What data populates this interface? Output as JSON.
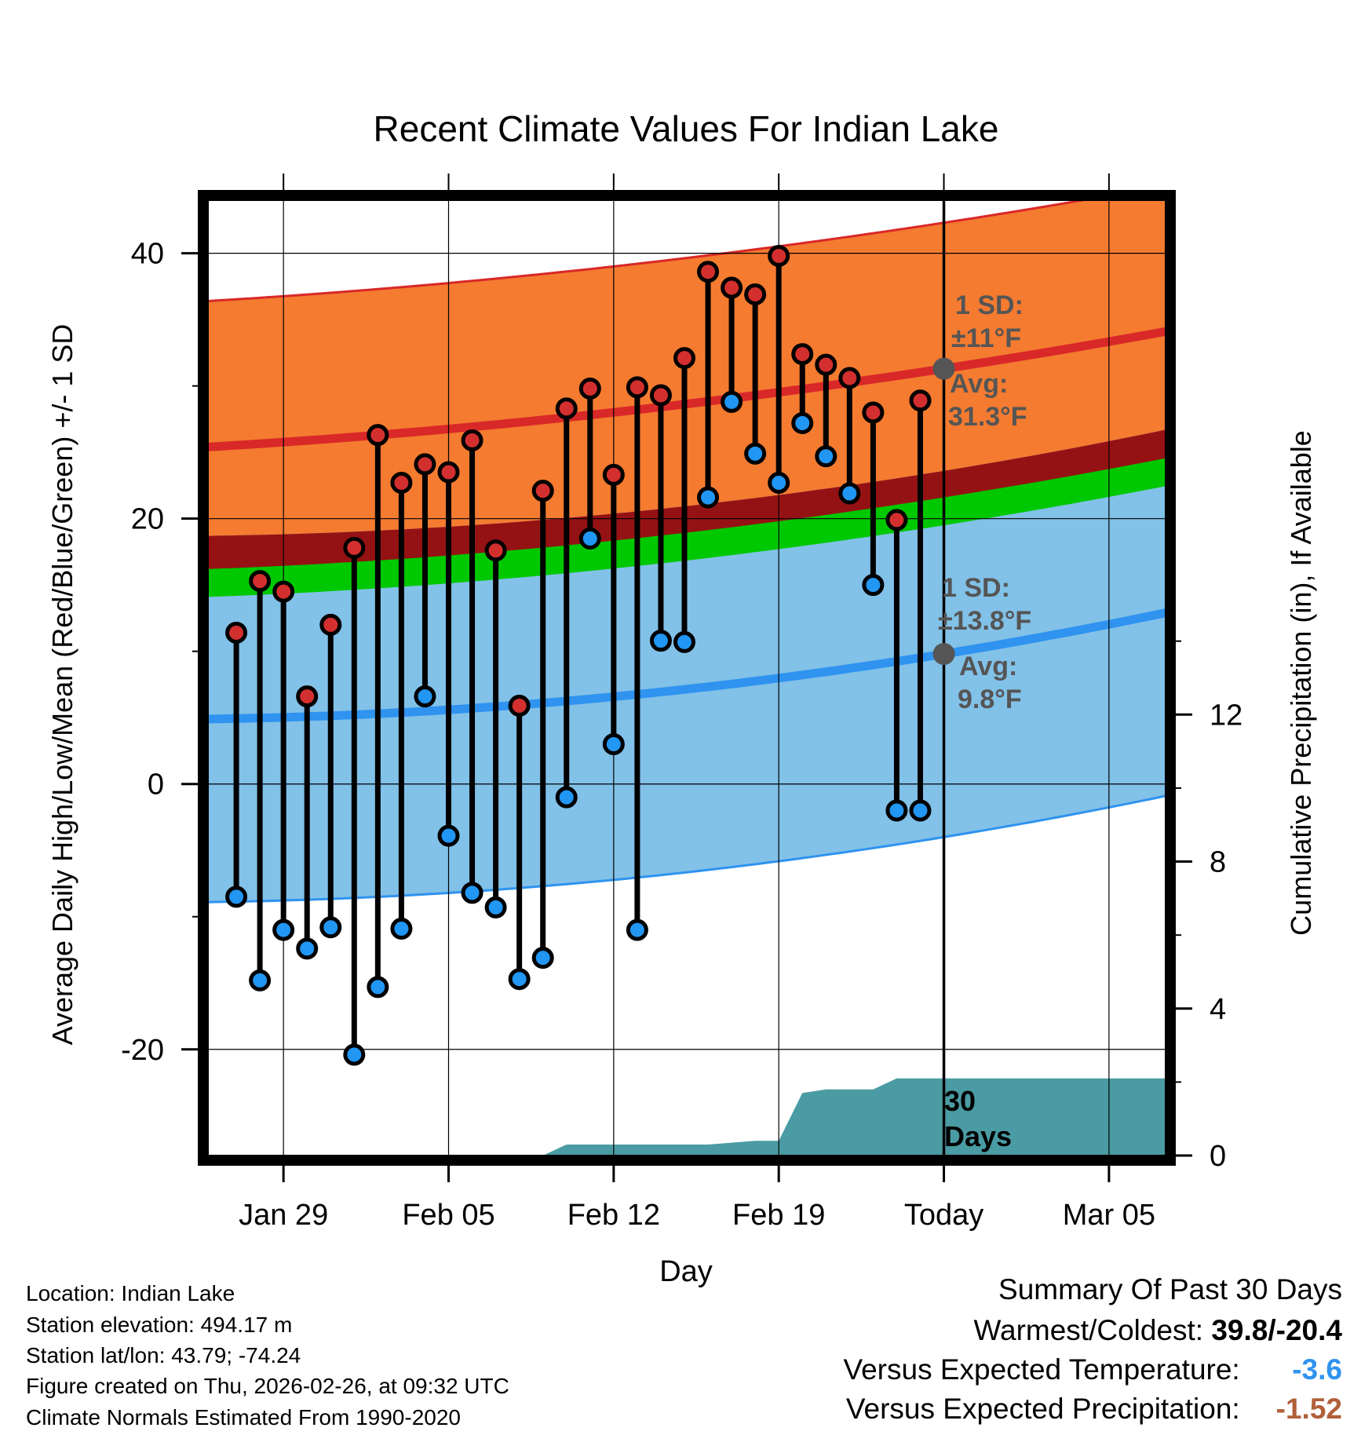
{
  "chart_data": {
    "type": "line",
    "title": "Recent Climate Values For Indian Lake",
    "xlabel": "Day",
    "ylabel_left": "Average Daily High/Low/Mean (Red/Blue/Green) +/- 1 SD",
    "ylabel_right": "Cumulative Precipitation (in), If Available",
    "ylim_left": [
      -28,
      44
    ],
    "ylim_right": [
      0,
      26
    ],
    "y_ticks_left": [
      "40",
      "20",
      "0",
      "-20"
    ],
    "y_ticks_right": [
      "12",
      "8",
      "4",
      "0"
    ],
    "x_tick_labels": [
      "Jan 29",
      "Feb 05",
      "Feb 12",
      "Feb 19",
      "Today",
      "Mar 05"
    ],
    "x_tick_days": [
      -28,
      -21,
      -14,
      -7,
      0,
      7
    ],
    "x_range_days": [
      -31.2,
      9.4
    ],
    "daily_days": [
      -30,
      -29,
      -28,
      -27,
      -26,
      -25,
      -24,
      -23,
      -22,
      -21,
      -20,
      -19,
      -18,
      -17,
      -16,
      -15,
      -14,
      -13,
      -12,
      -11,
      -10,
      -9,
      -8,
      -7,
      -6,
      -5,
      -4,
      -3,
      -2,
      -1
    ],
    "daily_highs": [
      11.4,
      15.3,
      14.5,
      6.6,
      12.0,
      17.8,
      26.3,
      22.7,
      24.1,
      23.5,
      25.9,
      17.6,
      5.9,
      22.1,
      28.3,
      29.8,
      23.3,
      29.9,
      29.3,
      32.1,
      38.6,
      37.4,
      36.9,
      39.8,
      32.4,
      31.6,
      30.6,
      28.0,
      19.9,
      28.9
    ],
    "daily_lows": [
      -8.5,
      -14.8,
      -11.0,
      -12.4,
      -10.8,
      -20.4,
      -15.3,
      -10.9,
      6.6,
      -3.9,
      -8.2,
      -9.3,
      -14.7,
      -13.1,
      -1.0,
      18.5,
      3.0,
      -11.0,
      10.8,
      10.7,
      21.6,
      28.8,
      24.9,
      22.7,
      27.2,
      24.7,
      21.9,
      15.0,
      -2.0,
      -2.0
    ],
    "normal_high_start": 25.4,
    "normal_high_today": 31.3,
    "normal_high_end": 34.1,
    "normal_low_start": 4.9,
    "normal_low_today": 9.8,
    "normal_low_end": 12.9,
    "high_sd": 11,
    "low_sd": 13.8,
    "precip_days": [
      -31.2,
      -17,
      -16,
      -13,
      -10,
      -8,
      -7,
      -6,
      -5,
      -4,
      -3,
      -2,
      9.4
    ],
    "precip_values": [
      0,
      0,
      0.3,
      0.3,
      0.3,
      0.4,
      0.4,
      1.7,
      1.8,
      1.8,
      1.8,
      2.1,
      2.1
    ],
    "annotations": {
      "high_sd_line1": "1 SD:",
      "high_sd_line2": "±11°F",
      "high_avg_line1": "Avg:",
      "high_avg_line2": "31.3°F",
      "low_sd_line1": "1 SD:",
      "low_sd_line2": "±13.8°F",
      "low_avg_line1": "Avg:",
      "low_avg_line2": "9.8°F",
      "days_line1": "30",
      "days_line2": "Days"
    },
    "colors": {
      "high_band": "#f47b30",
      "high_line": "#d92828",
      "low_band": "#82c1e8",
      "low_line": "#2f93ef",
      "overlap_band": "#951214",
      "mean_band": "#00c800",
      "precip": "#4a9ba3",
      "high_dot": "#d32f2f",
      "low_dot": "#2196f3",
      "annotation": "#555555"
    }
  },
  "info": {
    "location": "Location: Indian Lake",
    "elevation": "Station elevation: 494.17 m",
    "latlon": "Station lat/lon: 43.79; -74.24",
    "created": "Figure created on Thu, 2026-02-26, at 09:32 UTC",
    "normals": "Climate Normals Estimated From 1990-2020"
  },
  "summary": {
    "title": "Summary Of Past 30 Days",
    "warm_cold_label": "Warmest/Coldest:",
    "warm_cold_value": "39.8/-20.4",
    "temp_label": "Versus Expected Temperature:",
    "temp_value": "-3.6",
    "temp_color": "#2f93ef",
    "precip_label": "Versus Expected Precipitation:",
    "precip_value": "-1.52",
    "precip_color": "#b0603a"
  }
}
